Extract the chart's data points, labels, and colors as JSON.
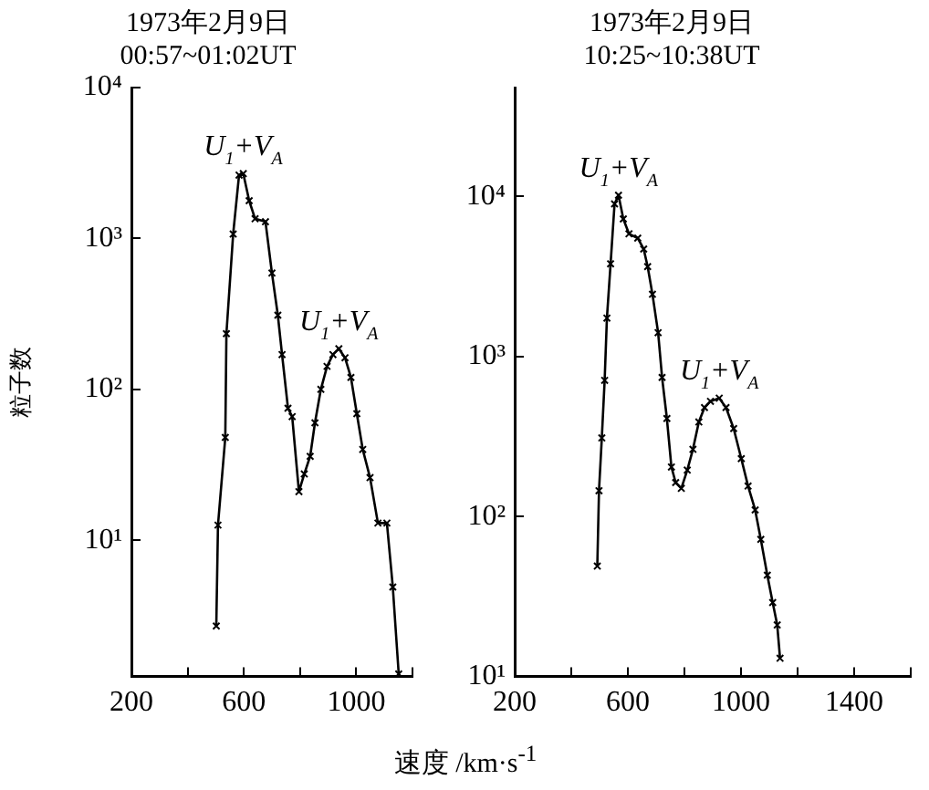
{
  "chart_data": [
    {
      "type": "line",
      "title": "1973年2月9日",
      "subtitle": "00:57~01:02UT",
      "ylabel": "粒子数",
      "xlabel": "速度 /km·s$^{-1}$",
      "log": true,
      "marker": "cross",
      "grid": false,
      "x": [
        502,
        508,
        534,
        538,
        562,
        583,
        598,
        619,
        640,
        677,
        700,
        721,
        736,
        757,
        772,
        796,
        815,
        836,
        853,
        874,
        896,
        917,
        938,
        960,
        981,
        1002,
        1023,
        1049,
        1077,
        1109,
        1130,
        1151
      ],
      "series": [
        {
          "color": "#000000",
          "values": [
            2.7,
            12.6,
            48,
            234,
            1070,
            2630,
            2690,
            1780,
            1350,
            1290,
            590,
            310,
            170,
            75,
            66,
            21,
            27.5,
            36,
            60,
            100,
            142,
            170,
            186,
            162,
            120,
            69,
            40,
            26,
            13,
            13,
            4.9,
            1.3
          ]
        }
      ],
      "xlim": [
        200,
        1200
      ],
      "xticks": [
        200,
        {
          "value": 400,
          "label": null
        },
        600,
        {
          "value": 800,
          "label": null
        },
        1000,
        {
          "value": 1200,
          "label": null
        }
      ],
      "ylim": [
        1.25,
        10000
      ],
      "yticks": [
        {
          "value": 10,
          "label": "10¹"
        },
        {
          "value": 100,
          "label": "10²"
        },
        {
          "value": 1000,
          "label": "10³"
        },
        {
          "value": 10000,
          "label": "10⁴"
        }
      ],
      "annotations": [
        {
          "text": "U$_{1}$+V$_{A}$",
          "x": 598,
          "y": 2690
        },
        {
          "text": "U$_{1}$+V$_{A}$",
          "x": 938,
          "y": 186
        }
      ]
    },
    {
      "type": "line",
      "title": "1973年2月9日",
      "subtitle": "10:25~10:38UT",
      "log": true,
      "marker": "cross",
      "grid": false,
      "x": [
        492,
        498,
        508,
        518,
        526,
        539,
        553,
        567,
        584,
        604,
        635,
        656,
        670,
        687,
        707,
        721,
        738,
        754,
        769,
        789,
        810,
        830,
        851,
        871,
        892,
        923,
        947,
        974,
        1001,
        1025,
        1050,
        1070,
        1093,
        1112,
        1128,
        1138
      ],
      "series": [
        {
          "color": "#000000",
          "values": [
            49,
            145,
            310,
            710,
            1740,
            3800,
            9000,
            10200,
            7250,
            5850,
            5500,
            4700,
            3650,
            2450,
            1410,
            740,
            410,
            204,
            163,
            150,
            195,
            263,
            390,
            480,
            525,
            550,
            480,
            355,
            230,
            155,
            110,
            72,
            43,
            29,
            21,
            13
          ]
        }
      ],
      "xlim": [
        200,
        1600
      ],
      "xticks": [
        200,
        {
          "value": 400,
          "label": null
        },
        600,
        {
          "value": 800,
          "label": null
        },
        1000,
        {
          "value": 1200,
          "label": null
        },
        1400,
        {
          "value": 1600,
          "label": null
        }
      ],
      "ylim": [
        10,
        48000
      ],
      "yticks": [
        {
          "value": 10,
          "label": "10¹"
        },
        {
          "value": 100,
          "label": "10²"
        },
        {
          "value": 1000,
          "label": "10³"
        },
        {
          "value": 10000,
          "label": "10⁴"
        }
      ],
      "annotations": [
        {
          "text": "U$_{1}$+V$_{A}$",
          "x": 567,
          "y": 10200
        },
        {
          "text": "U$_{1}$+V$_{A}$",
          "x": 923,
          "y": 550
        }
      ]
    }
  ]
}
